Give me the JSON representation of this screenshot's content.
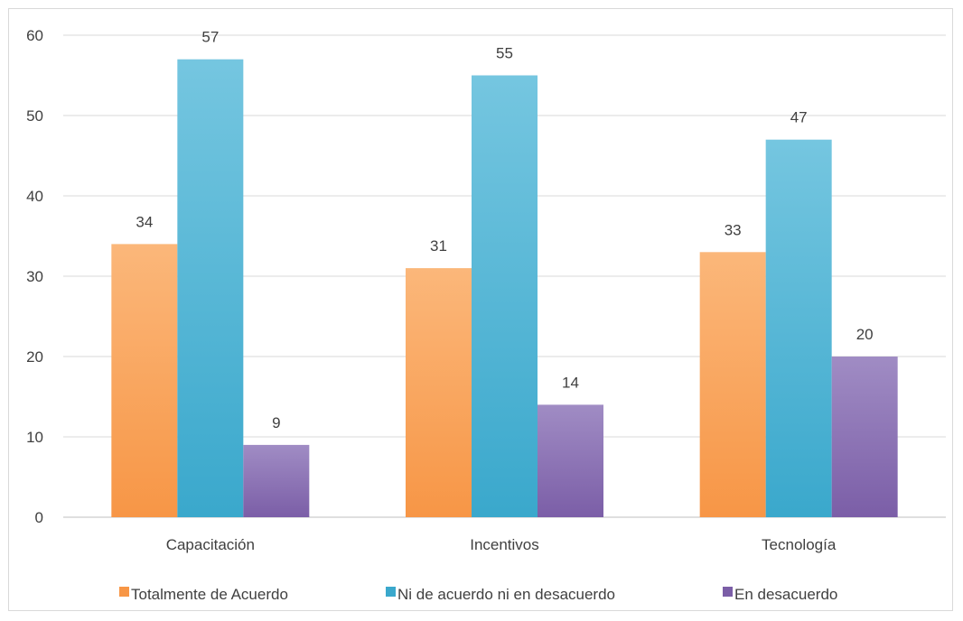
{
  "chart_data": {
    "type": "bar",
    "categories": [
      "Capacitación",
      "Incentivos",
      "Tecnología"
    ],
    "series": [
      {
        "name": "Totalmente de Acuerdo",
        "values": [
          34,
          31,
          33
        ],
        "color": "#f79646",
        "color_light": "#fbb77a"
      },
      {
        "name": "Ni de acuerdo ni en desacuerdo",
        "values": [
          57,
          55,
          47
        ],
        "color": "#3aa8cc",
        "color_light": "#75c6e0"
      },
      {
        "name": "En desacuerdo",
        "values": [
          9,
          14,
          20
        ],
        "color": "#7b5ea7",
        "color_light": "#a08cc4"
      }
    ],
    "ylim": [
      0,
      60
    ],
    "yticks": [
      0,
      10,
      20,
      30,
      40,
      50,
      60
    ],
    "grid": true,
    "legend_position": "bottom",
    "data_labels": true
  }
}
